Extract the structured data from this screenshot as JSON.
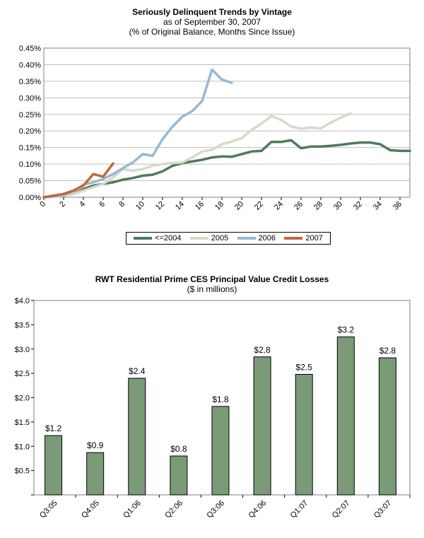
{
  "chart1": {
    "title": "Seriously Delinquent Trends by Vintage",
    "subtitle1": "as of September 30, 2007",
    "subtitle2": "(% of Original Balance, Months Since Issue)",
    "chart_data": {
      "type": "line",
      "xlim": [
        0,
        37
      ],
      "ylim": [
        0,
        0.45
      ],
      "x_ticks": [
        0,
        2,
        4,
        6,
        8,
        10,
        12,
        14,
        16,
        18,
        20,
        22,
        24,
        26,
        28,
        30,
        32,
        34,
        36
      ],
      "y_ticks": [
        "0.00%",
        "0.05%",
        "0.10%",
        "0.15%",
        "0.20%",
        "0.25%",
        "0.30%",
        "0.35%",
        "0.40%",
        "0.45%"
      ],
      "grid": true,
      "legend_position": "bottom",
      "series": [
        {
          "name": "<=2004",
          "color": "#4f7a5b",
          "x": [
            0,
            1,
            2,
            3,
            4,
            5,
            6,
            7,
            8,
            9,
            10,
            11,
            12,
            13,
            14,
            15,
            16,
            17,
            18,
            19,
            20,
            21,
            22,
            23,
            24,
            25,
            26,
            27,
            28,
            29,
            30,
            31,
            32,
            33,
            34,
            35,
            36,
            37
          ],
          "y": [
            0,
            0.002,
            0.005,
            0.01,
            0.025,
            0.035,
            0.04,
            0.045,
            0.053,
            0.058,
            0.065,
            0.068,
            0.078,
            0.095,
            0.103,
            0.108,
            0.113,
            0.12,
            0.123,
            0.122,
            0.13,
            0.138,
            0.14,
            0.167,
            0.167,
            0.172,
            0.148,
            0.153,
            0.153,
            0.155,
            0.158,
            0.162,
            0.165,
            0.165,
            0.16,
            0.142,
            0.14,
            0.14
          ]
        },
        {
          "name": "2005",
          "color": "#d9d9c8",
          "x": [
            0,
            1,
            2,
            3,
            4,
            5,
            6,
            7,
            8,
            9,
            10,
            11,
            12,
            13,
            14,
            15,
            16,
            17,
            18,
            19,
            20,
            21,
            22,
            23,
            24,
            25,
            26,
            27,
            28,
            29,
            30,
            31
          ],
          "y": [
            0,
            0.002,
            0.005,
            0.01,
            0.02,
            0.03,
            0.04,
            0.06,
            0.085,
            0.08,
            0.085,
            0.095,
            0.1,
            0.103,
            0.105,
            0.12,
            0.138,
            0.143,
            0.16,
            0.168,
            0.178,
            0.203,
            0.222,
            0.245,
            0.233,
            0.213,
            0.207,
            0.21,
            0.208,
            0.225,
            0.24,
            0.253
          ]
        },
        {
          "name": "2006",
          "color": "#95b8d6",
          "x": [
            0,
            1,
            2,
            3,
            4,
            5,
            6,
            7,
            8,
            9,
            10,
            11,
            12,
            13,
            14,
            15,
            16,
            17,
            18,
            19
          ],
          "y": [
            0,
            0.003,
            0.007,
            0.018,
            0.038,
            0.045,
            0.055,
            0.07,
            0.088,
            0.105,
            0.13,
            0.125,
            0.175,
            0.213,
            0.243,
            0.26,
            0.29,
            0.385,
            0.355,
            0.345
          ]
        },
        {
          "name": "2007",
          "color": "#c8643b",
          "x": [
            0,
            1,
            2,
            3,
            4,
            5,
            6,
            7
          ],
          "y": [
            0,
            0.005,
            0.01,
            0.02,
            0.035,
            0.07,
            0.062,
            0.102
          ]
        }
      ]
    }
  },
  "chart2": {
    "title": "RWT Residential Prime CES Principal Value Credit Losses",
    "subtitle": "($ in millions)",
    "chart_data": {
      "type": "bar",
      "categories": [
        "Q3:05",
        "Q4:05",
        "Q1:06",
        "Q2:06",
        "Q3:06",
        "Q4:06",
        "Q1:07",
        "Q2:07",
        "Q3:07"
      ],
      "values": [
        1.22,
        0.87,
        2.4,
        0.8,
        1.82,
        2.84,
        2.48,
        3.25,
        2.82
      ],
      "data_labels": [
        "$1.2",
        "$0.9",
        "$2.4",
        "$0.8",
        "$1.8",
        "$2.8",
        "$2.5",
        "$3.2",
        "$2.8"
      ],
      "ylim": [
        0,
        4.0
      ],
      "y_ticks": [
        "",
        "$0.5",
        "$1.0",
        "$1.5",
        "$2.0",
        "$2.5",
        "$3.0",
        "$3.5",
        "$4.0"
      ],
      "bar_color": "#7a9a78",
      "grid": false
    }
  }
}
